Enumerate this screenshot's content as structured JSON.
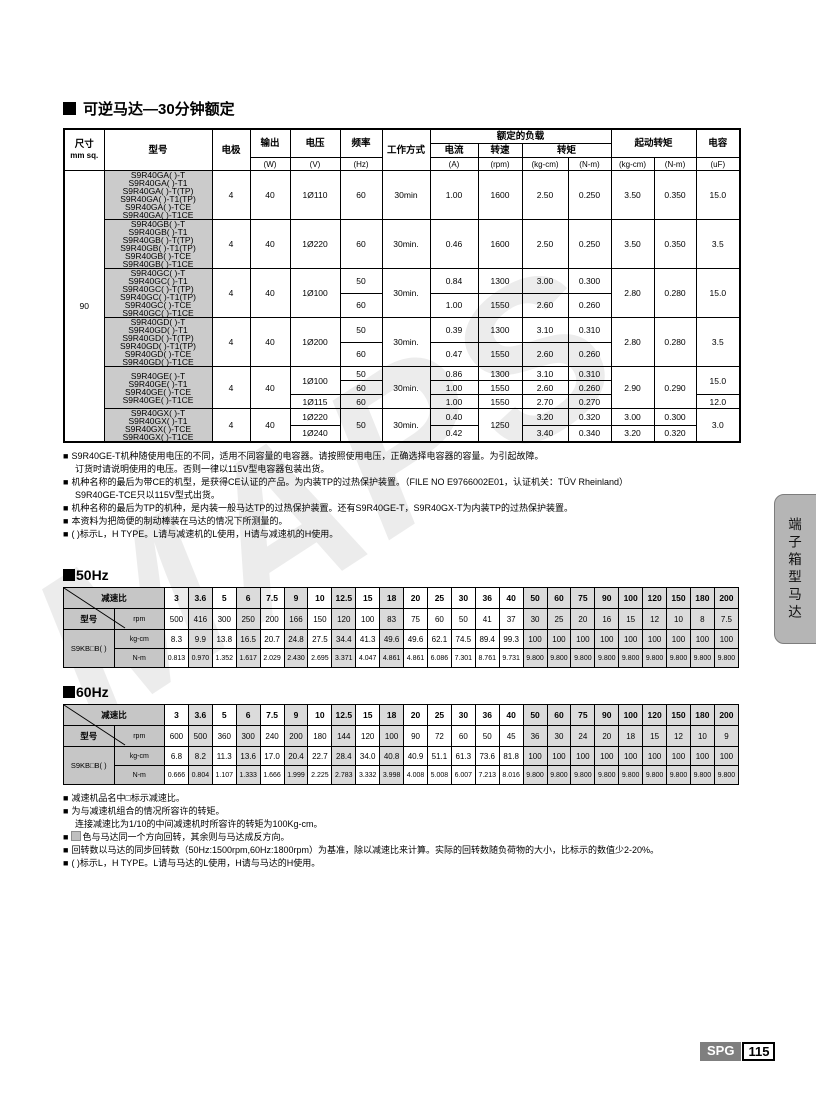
{
  "page": {
    "title": "可逆马达—30分钟额定",
    "watermark": "MAPS",
    "side_tab": "端子箱型马达",
    "footer_brand": "SPG",
    "footer_page": "115"
  },
  "spec": {
    "header": {
      "size": "尺寸",
      "size_unit": "mm sq.",
      "model": "型号",
      "poles": "电极",
      "output": "输出",
      "voltage": "电压",
      "freq": "频率",
      "duty": "工作方式",
      "rated_load": "额定的负载",
      "current": "电流",
      "speed": "转速",
      "torque": "转矩",
      "start_torque": "起动转矩",
      "capacitor": "电容",
      "u_w": "(W)",
      "u_v": "(V)",
      "u_hz": "(Hz)",
      "u_a": "(A)",
      "u_rpm": "(rpm)",
      "u_kgcm": "(kg-cm)",
      "u_nm": "(N-m)",
      "u_uf": "(uF)"
    },
    "size": "90",
    "ga": {
      "models": [
        "S9R40GA( )-T",
        "S9R40GA( )-T1",
        "S9R40GA( )-T(TP)",
        "S9R40GA( )-T1(TP)",
        "S9R40GA( )-TCE",
        "S9R40GA( )-T1CE"
      ],
      "poles": "4",
      "output": "40",
      "voltage": "1Ø110",
      "freq": "60",
      "duty": "30min",
      "current": "1.00",
      "speed": "1600",
      "tk": "2.50",
      "tn": "0.250",
      "sk": "3.50",
      "sn": "0.350",
      "cap": "15.0"
    },
    "gb": {
      "models": [
        "S9R40GB( )-T",
        "S9R40GB( )-T1",
        "S9R40GB( )-T(TP)",
        "S9R40GB( )-T1(TP)",
        "S9R40GB( )-TCE",
        "S9R40GB( )-T1CE"
      ],
      "poles": "4",
      "output": "40",
      "voltage": "1Ø220",
      "freq": "60",
      "duty": "30min.",
      "current": "0.46",
      "speed": "1600",
      "tk": "2.50",
      "tn": "0.250",
      "sk": "3.50",
      "sn": "0.350",
      "cap": "3.5"
    },
    "gc": {
      "models": [
        "S9R40GC( )-T",
        "S9R40GC( )-T1",
        "S9R40GC( )-T(TP)",
        "S9R40GC( )-T1(TP)",
        "S9R40GC( )-TCE",
        "S9R40GC( )-T1CE"
      ],
      "poles": "4",
      "output": "40",
      "voltage": "1Ø100",
      "duty": "30min.",
      "r1": {
        "freq": "50",
        "current": "0.84",
        "speed": "1300",
        "tk": "3.00",
        "tn": "0.300"
      },
      "r2": {
        "freq": "60",
        "current": "1.00",
        "speed": "1550",
        "tk": "2.60",
        "tn": "0.260"
      },
      "sk": "2.80",
      "sn": "0.280",
      "cap": "15.0"
    },
    "gd": {
      "models": [
        "S9R40GD( )-T",
        "S9R40GD( )-T1",
        "S9R40GD( )-T(TP)",
        "S9R40GD( )-T1(TP)",
        "S9R40GD( )-TCE",
        "S9R40GD( )-T1CE"
      ],
      "poles": "4",
      "output": "40",
      "voltage": "1Ø200",
      "duty": "30min.",
      "r1": {
        "freq": "50",
        "current": "0.39",
        "speed": "1300",
        "tk": "3.10",
        "tn": "0.310"
      },
      "r2": {
        "freq": "60",
        "current": "0.47",
        "speed": "1550",
        "tk": "2.60",
        "tn": "0.260"
      },
      "sk": "2.80",
      "sn": "0.280",
      "cap": "3.5"
    },
    "ge": {
      "models": [
        "S9R40GE( )-T",
        "S9R40GE( )-T1",
        "S9R40GE( )-TCE",
        "S9R40GE( )-T1CE"
      ],
      "poles": "4",
      "output": "40",
      "v1": "1Ø100",
      "v2": "1Ø115",
      "duty": "30min.",
      "r1": {
        "freq": "50",
        "current": "0.86",
        "speed": "1300",
        "tk": "3.10",
        "tn": "0.310"
      },
      "r2": {
        "freq": "60",
        "current": "1.00",
        "speed": "1550",
        "tk": "2.60",
        "tn": "0.260"
      },
      "r3": {
        "freq": "60",
        "current": "1.00",
        "speed": "1550",
        "tk": "2.70",
        "tn": "0.270"
      },
      "sk": "2.90",
      "sn": "0.290",
      "cap1": "15.0",
      "cap2": "12.0"
    },
    "gx": {
      "models": [
        "S9R40GX( )-T",
        "S9R40GX( )-T1",
        "S9R40GX( )-TCE",
        "S9R40GX( )-T1CE"
      ],
      "poles": "4",
      "output": "40",
      "v1": "1Ø220",
      "v2": "1Ø240",
      "freq": "50",
      "duty": "30min.",
      "speed": "1250",
      "r1": {
        "current": "0.40",
        "tk": "3.20",
        "tn": "0.320",
        "sk": "3.00",
        "sn": "0.300"
      },
      "r2": {
        "current": "0.42",
        "tk": "3.40",
        "tn": "0.340",
        "sk": "3.20",
        "sn": "0.320"
      },
      "cap": "3.0"
    }
  },
  "notes1": {
    "lines": [
      {
        "b": "■",
        "t": "S9R40GE-T机种随使用电压的不同，适用不同容量的电容器。请按照使用电压，正确选择电容器的容量。为引起故障。"
      },
      {
        "b": "",
        "t": "订货时请说明使用的电压。否则一律以115V型电容器包装出货。"
      },
      {
        "b": "■",
        "t": "机种名称的最后为带CE的机型，是获得CE认证的产品。为内装TP的过热保护装置。（FILE NO E9766002E01，认证机关：TÜV Rheinland）"
      },
      {
        "b": "",
        "t": "S9R40GE-TCE只以115V型式出货。"
      },
      {
        "b": "■",
        "t": "机种名称的最后为TP的机种，是内装一般马达TP的过热保护装置。还有S9R40GE-T，S9R40GX-T为内装TP的过热保护装置。"
      },
      {
        "b": "■",
        "t": "本资料为把简便的制动棒装在马达的情况下所测量的。"
      },
      {
        "b": "■",
        "t": "( )标示L，H TYPE。L请与减速机的L使用，H请与减速机的H使用。"
      }
    ]
  },
  "gear": [
    {
      "title": "50Hz",
      "ratio_label": "减速比",
      "model_label": "型号",
      "rpm_label": "rpm",
      "row_model": "S9KB□B( )",
      "unit_kgcm": "kg-cm",
      "unit_nm": "N-m",
      "ratios": [
        "3",
        "3.6",
        "5",
        "6",
        "7.5",
        "9",
        "10",
        "12.5",
        "15",
        "18",
        "20",
        "25",
        "30",
        "36",
        "40",
        "50",
        "60",
        "75",
        "90",
        "100",
        "120",
        "150",
        "180",
        "200"
      ],
      "rpm": [
        "500",
        "416",
        "300",
        "250",
        "200",
        "166",
        "150",
        "120",
        "100",
        "83",
        "75",
        "60",
        "50",
        "41",
        "37",
        "30",
        "25",
        "20",
        "16",
        "15",
        "12",
        "10",
        "8",
        "7.5"
      ],
      "kgcm": [
        "8.3",
        "9.9",
        "13.8",
        "16.5",
        "20.7",
        "24.8",
        "27.5",
        "34.4",
        "41.3",
        "49.6",
        "49.6",
        "62.1",
        "74.5",
        "89.4",
        "99.3",
        "100",
        "100",
        "100",
        "100",
        "100",
        "100",
        "100",
        "100",
        "100"
      ],
      "nm": [
        "0.813",
        "0.970",
        "1.352",
        "1.617",
        "2.029",
        "2.430",
        "2.695",
        "3.371",
        "4.047",
        "4.861",
        "4.861",
        "6.086",
        "7.301",
        "8.761",
        "9.731",
        "9.800",
        "9.800",
        "9.800",
        "9.800",
        "9.800",
        "9.800",
        "9.800",
        "9.800",
        "9.800"
      ],
      "shaded_ratios": [
        "3.6",
        "6",
        "9",
        "12.5",
        "18",
        "50",
        "60",
        "75",
        "90",
        "100",
        "120",
        "150",
        "180",
        "200"
      ]
    },
    {
      "title": "60Hz",
      "ratio_label": "减速比",
      "model_label": "型号",
      "rpm_label": "rpm",
      "row_model": "S9KB□B( )",
      "unit_kgcm": "kg-cm",
      "unit_nm": "N-m",
      "ratios": [
        "3",
        "3.6",
        "5",
        "6",
        "7.5",
        "9",
        "10",
        "12.5",
        "15",
        "18",
        "20",
        "25",
        "30",
        "36",
        "40",
        "50",
        "60",
        "75",
        "90",
        "100",
        "120",
        "150",
        "180",
        "200"
      ],
      "rpm": [
        "600",
        "500",
        "360",
        "300",
        "240",
        "200",
        "180",
        "144",
        "120",
        "100",
        "90",
        "72",
        "60",
        "50",
        "45",
        "36",
        "30",
        "24",
        "20",
        "18",
        "15",
        "12",
        "10",
        "9"
      ],
      "kgcm": [
        "6.8",
        "8.2",
        "11.3",
        "13.6",
        "17.0",
        "20.4",
        "22.7",
        "28.4",
        "34.0",
        "40.8",
        "40.9",
        "51.1",
        "61.3",
        "73.6",
        "81.8",
        "100",
        "100",
        "100",
        "100",
        "100",
        "100",
        "100",
        "100",
        "100"
      ],
      "nm": [
        "0.666",
        "0.804",
        "1.107",
        "1.333",
        "1.666",
        "1.999",
        "2.225",
        "2.783",
        "3.332",
        "3.998",
        "4.008",
        "5.008",
        "6.007",
        "7.213",
        "8.016",
        "9.800",
        "9.800",
        "9.800",
        "9.800",
        "9.800",
        "9.800",
        "9.800",
        "9.800",
        "9.800"
      ],
      "shaded_ratios": [
        "3.6",
        "6",
        "9",
        "12.5",
        "18",
        "50",
        "60",
        "75",
        "90",
        "100",
        "120",
        "150",
        "180",
        "200"
      ]
    }
  ],
  "notes2": {
    "lines": [
      {
        "b": "■",
        "t": "减速机品名中□标示减速比。"
      },
      {
        "b": "■",
        "t": "为与减速机组合的情况所容许的转矩。"
      },
      {
        "b": "",
        "t": "连接减速比为1/10的中间减速机时所容许的转矩为100Kg-cm。"
      },
      {
        "b": "■",
        "swatch": true,
        "t": "色与马达同一个方向回转，其余则与马达成反方向。"
      },
      {
        "b": "■",
        "t": "回转数以马达的同步回转数（50Hz:1500rpm,60Hz:1800rpm）为基准，除以减速比来计算。实际的回转数随负荷物的大小，比标示的数值少2-20%。"
      },
      {
        "b": "■",
        "t": "( )标示L，H TYPE。L请与马达的L使用，H请与马达的H使用。"
      }
    ]
  }
}
